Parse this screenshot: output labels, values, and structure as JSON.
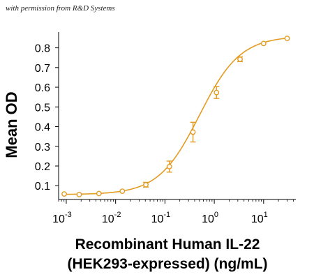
{
  "credit": "with permission from R&D Systems",
  "chart_data": {
    "type": "scatter",
    "title": "",
    "xlabel_line1": "Recombinant Human IL-22",
    "xlabel_line2": "(HEK293-expressed) (ng/mL)",
    "ylabel": "Mean OD",
    "xscale": "log",
    "xlim": [
      0.0007,
      45
    ],
    "ylim": [
      0.03,
      0.88
    ],
    "x_ticks": [
      {
        "value": 0.001,
        "base": "10",
        "exp": "-3"
      },
      {
        "value": 0.01,
        "base": "10",
        "exp": "-2"
      },
      {
        "value": 0.1,
        "base": "10",
        "exp": "-1"
      },
      {
        "value": 1,
        "base": "10",
        "exp": "0"
      },
      {
        "value": 10,
        "base": "10",
        "exp": "1"
      }
    ],
    "y_ticks": [
      "0.1",
      "0.2",
      "0.3",
      "0.4",
      "0.5",
      "0.6",
      "0.7",
      "0.8"
    ],
    "grid": false,
    "color": "#E39B22",
    "series": [
      {
        "x": [
          0.00091,
          0.00183,
          0.0046,
          0.0137,
          0.041,
          0.123,
          0.37,
          1.11,
          3.33,
          10,
          30
        ],
        "y": [
          0.058,
          0.055,
          0.06,
          0.072,
          0.105,
          0.197,
          0.372,
          0.573,
          0.742,
          0.822,
          0.848
        ],
        "err": [
          0.004,
          0.003,
          0.003,
          0.005,
          0.012,
          0.028,
          0.05,
          0.03,
          0.012,
          0.005,
          0.004
        ]
      }
    ]
  }
}
